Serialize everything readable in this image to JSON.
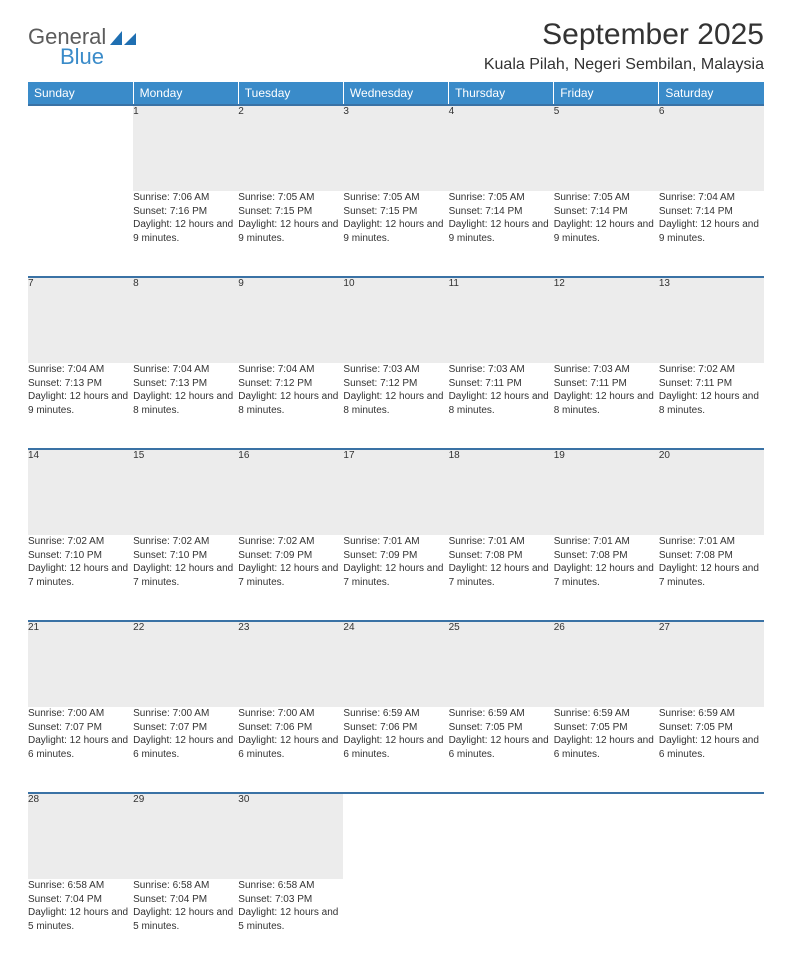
{
  "logo": {
    "word1": "General",
    "word2": "Blue"
  },
  "title": "September 2025",
  "location": "Kuala Pilah, Negeri Sembilan, Malaysia",
  "colors": {
    "header_bg": "#3a8bc9",
    "row_divider": "#3a72a5",
    "daynum_bg": "#ececec",
    "text": "#333333",
    "logo_gray": "#5c5c5c",
    "logo_blue": "#3a8bc9"
  },
  "weekdays": [
    "Sunday",
    "Monday",
    "Tuesday",
    "Wednesday",
    "Thursday",
    "Friday",
    "Saturday"
  ],
  "weeks": [
    [
      null,
      {
        "n": "1",
        "sr": "7:06 AM",
        "ss": "7:16 PM",
        "dl": "12 hours and 9 minutes."
      },
      {
        "n": "2",
        "sr": "7:05 AM",
        "ss": "7:15 PM",
        "dl": "12 hours and 9 minutes."
      },
      {
        "n": "3",
        "sr": "7:05 AM",
        "ss": "7:15 PM",
        "dl": "12 hours and 9 minutes."
      },
      {
        "n": "4",
        "sr": "7:05 AM",
        "ss": "7:14 PM",
        "dl": "12 hours and 9 minutes."
      },
      {
        "n": "5",
        "sr": "7:05 AM",
        "ss": "7:14 PM",
        "dl": "12 hours and 9 minutes."
      },
      {
        "n": "6",
        "sr": "7:04 AM",
        "ss": "7:14 PM",
        "dl": "12 hours and 9 minutes."
      }
    ],
    [
      {
        "n": "7",
        "sr": "7:04 AM",
        "ss": "7:13 PM",
        "dl": "12 hours and 9 minutes."
      },
      {
        "n": "8",
        "sr": "7:04 AM",
        "ss": "7:13 PM",
        "dl": "12 hours and 8 minutes."
      },
      {
        "n": "9",
        "sr": "7:04 AM",
        "ss": "7:12 PM",
        "dl": "12 hours and 8 minutes."
      },
      {
        "n": "10",
        "sr": "7:03 AM",
        "ss": "7:12 PM",
        "dl": "12 hours and 8 minutes."
      },
      {
        "n": "11",
        "sr": "7:03 AM",
        "ss": "7:11 PM",
        "dl": "12 hours and 8 minutes."
      },
      {
        "n": "12",
        "sr": "7:03 AM",
        "ss": "7:11 PM",
        "dl": "12 hours and 8 minutes."
      },
      {
        "n": "13",
        "sr": "7:02 AM",
        "ss": "7:11 PM",
        "dl": "12 hours and 8 minutes."
      }
    ],
    [
      {
        "n": "14",
        "sr": "7:02 AM",
        "ss": "7:10 PM",
        "dl": "12 hours and 7 minutes."
      },
      {
        "n": "15",
        "sr": "7:02 AM",
        "ss": "7:10 PM",
        "dl": "12 hours and 7 minutes."
      },
      {
        "n": "16",
        "sr": "7:02 AM",
        "ss": "7:09 PM",
        "dl": "12 hours and 7 minutes."
      },
      {
        "n": "17",
        "sr": "7:01 AM",
        "ss": "7:09 PM",
        "dl": "12 hours and 7 minutes."
      },
      {
        "n": "18",
        "sr": "7:01 AM",
        "ss": "7:08 PM",
        "dl": "12 hours and 7 minutes."
      },
      {
        "n": "19",
        "sr": "7:01 AM",
        "ss": "7:08 PM",
        "dl": "12 hours and 7 minutes."
      },
      {
        "n": "20",
        "sr": "7:01 AM",
        "ss": "7:08 PM",
        "dl": "12 hours and 7 minutes."
      }
    ],
    [
      {
        "n": "21",
        "sr": "7:00 AM",
        "ss": "7:07 PM",
        "dl": "12 hours and 6 minutes."
      },
      {
        "n": "22",
        "sr": "7:00 AM",
        "ss": "7:07 PM",
        "dl": "12 hours and 6 minutes."
      },
      {
        "n": "23",
        "sr": "7:00 AM",
        "ss": "7:06 PM",
        "dl": "12 hours and 6 minutes."
      },
      {
        "n": "24",
        "sr": "6:59 AM",
        "ss": "7:06 PM",
        "dl": "12 hours and 6 minutes."
      },
      {
        "n": "25",
        "sr": "6:59 AM",
        "ss": "7:05 PM",
        "dl": "12 hours and 6 minutes."
      },
      {
        "n": "26",
        "sr": "6:59 AM",
        "ss": "7:05 PM",
        "dl": "12 hours and 6 minutes."
      },
      {
        "n": "27",
        "sr": "6:59 AM",
        "ss": "7:05 PM",
        "dl": "12 hours and 6 minutes."
      }
    ],
    [
      {
        "n": "28",
        "sr": "6:58 AM",
        "ss": "7:04 PM",
        "dl": "12 hours and 5 minutes."
      },
      {
        "n": "29",
        "sr": "6:58 AM",
        "ss": "7:04 PM",
        "dl": "12 hours and 5 minutes."
      },
      {
        "n": "30",
        "sr": "6:58 AM",
        "ss": "7:03 PM",
        "dl": "12 hours and 5 minutes."
      },
      null,
      null,
      null,
      null
    ]
  ],
  "labels": {
    "sunrise": "Sunrise:",
    "sunset": "Sunset:",
    "daylight": "Daylight:"
  }
}
